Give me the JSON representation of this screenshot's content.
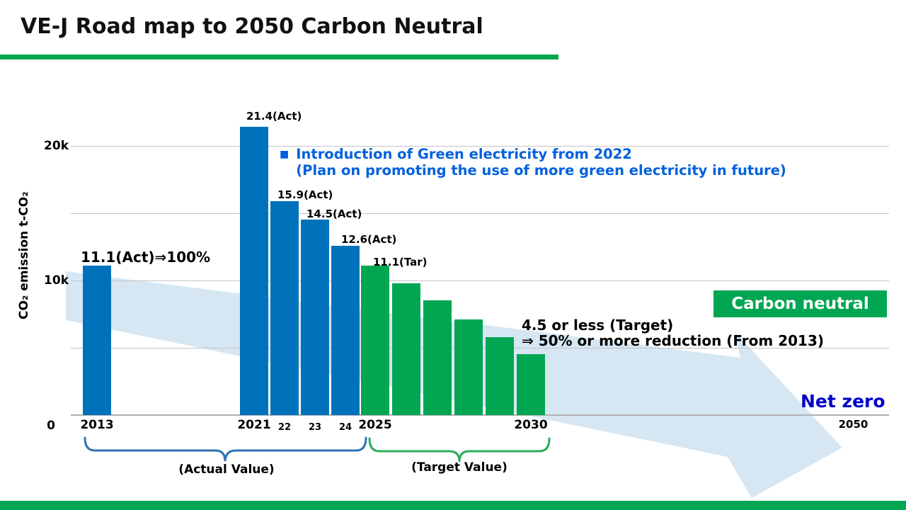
{
  "slide": {
    "title": "VE-J Road map to 2050 Carbon Neutral"
  },
  "chart_data": {
    "type": "bar",
    "title": "VE-J Road map to 2050 Carbon Neutral",
    "ylabel": "CO₂ emission  t-CO₂",
    "unit_note": "values in thousand t-CO2 (k)",
    "ylim_k": [
      0,
      22
    ],
    "grid": "horizontal",
    "legend_position": "none",
    "yticks": [
      {
        "value": 0,
        "label": "0"
      },
      {
        "value": 10,
        "label": "10k"
      },
      {
        "value": 20,
        "label": "20k"
      }
    ],
    "gridline_values_k": [
      5,
      10,
      15,
      20
    ],
    "series": [
      {
        "name": "Actual Value",
        "color": "#0072bc",
        "points": [
          {
            "x": "2013",
            "value": 11.1,
            "value_label": "11.1(Act)⇒100%",
            "tick": "2013",
            "tick_size": "big"
          },
          {
            "x": "2021",
            "value": 21.4,
            "value_label": "21.4(Act)",
            "tick": "2021",
            "tick_size": "big"
          },
          {
            "x": "2022",
            "value": 15.9,
            "value_label": "15.9(Act)",
            "tick": "22",
            "tick_size": "small"
          },
          {
            "x": "2023",
            "value": 14.5,
            "value_label": "14.5(Act)",
            "tick": "23",
            "tick_size": "small"
          },
          {
            "x": "2024",
            "value": 12.6,
            "value_label": "12.6(Act)",
            "tick": "24",
            "tick_size": "small"
          }
        ]
      },
      {
        "name": "Target Value",
        "color": "#00a651",
        "points": [
          {
            "x": "2025",
            "value": 11.1,
            "value_label": "11.1(Tar)",
            "tick": "2025",
            "tick_size": "big"
          },
          {
            "x": "2026",
            "value": 9.8,
            "value_label": "",
            "tick": "",
            "tick_size": ""
          },
          {
            "x": "2027",
            "value": 8.5,
            "value_label": "",
            "tick": "",
            "tick_size": ""
          },
          {
            "x": "2028",
            "value": 7.1,
            "value_label": "",
            "tick": "",
            "tick_size": ""
          },
          {
            "x": "2029",
            "value": 5.8,
            "value_label": "",
            "tick": "",
            "tick_size": ""
          },
          {
            "x": "2030",
            "value": 4.5,
            "value_label": "",
            "tick": "2030",
            "tick_size": "big"
          }
        ]
      }
    ],
    "far_tick": {
      "label": "2050"
    }
  },
  "annotations": {
    "green_electricity": {
      "bullet": "■",
      "line1": "Introduction of Green electricity from 2022",
      "line2": "(Plan on promoting the use of more green electricity in future)"
    },
    "carbon_neutral": "Carbon neutral",
    "target_note": {
      "line1": "4.5 or less (Target)",
      "line2": "⇒ 50% or more reduction (From 2013)"
    },
    "net_zero": "Net zero",
    "brace_actual": "(Actual Value)",
    "brace_target": "(Target Value)"
  },
  "colors": {
    "actual_bar_blue": "#0072bc",
    "target_bar_green": "#00a651",
    "accent_green": "#00a94f",
    "note_blue": "#0061dd",
    "net_zero_blue": "#0000cc",
    "arrow_light_blue": "#cfe3f1",
    "brace_blue": "#2e74b5",
    "brace_green": "#2bae5c",
    "gridline_gray": "#c3c3c3"
  }
}
